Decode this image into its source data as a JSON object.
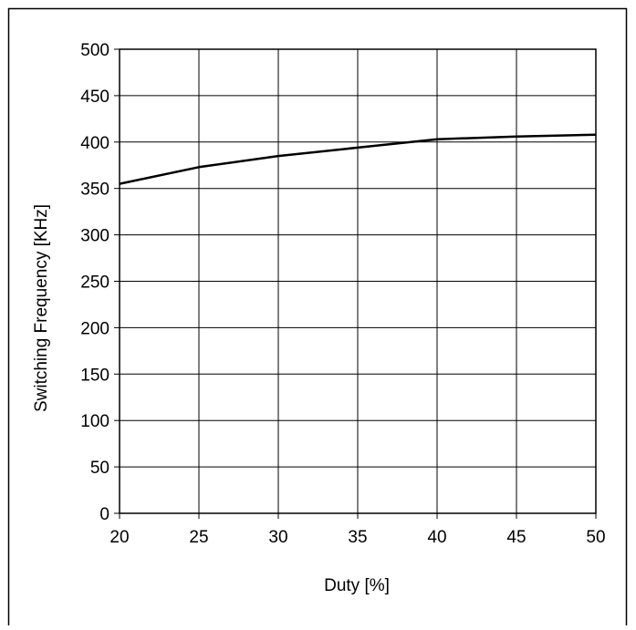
{
  "chart_data": {
    "type": "line",
    "title": "",
    "xlabel": "Duty [%]",
    "ylabel": "Switching Frequency [KHz]",
    "xlim": [
      20,
      50
    ],
    "ylim": [
      0,
      500
    ],
    "x_ticks": [
      20,
      25,
      30,
      35,
      40,
      45,
      50
    ],
    "y_ticks": [
      0,
      50,
      100,
      150,
      200,
      250,
      300,
      350,
      400,
      450,
      500
    ],
    "grid": true,
    "legend": "none",
    "series": [
      {
        "x": [
          20,
          25,
          30,
          35,
          40,
          45,
          50
        ],
        "values": [
          355,
          373,
          385,
          394,
          403,
          406,
          408
        ]
      }
    ],
    "colors": {
      "line": "#000000",
      "grid": "#000000",
      "background": "#ffffff"
    }
  }
}
